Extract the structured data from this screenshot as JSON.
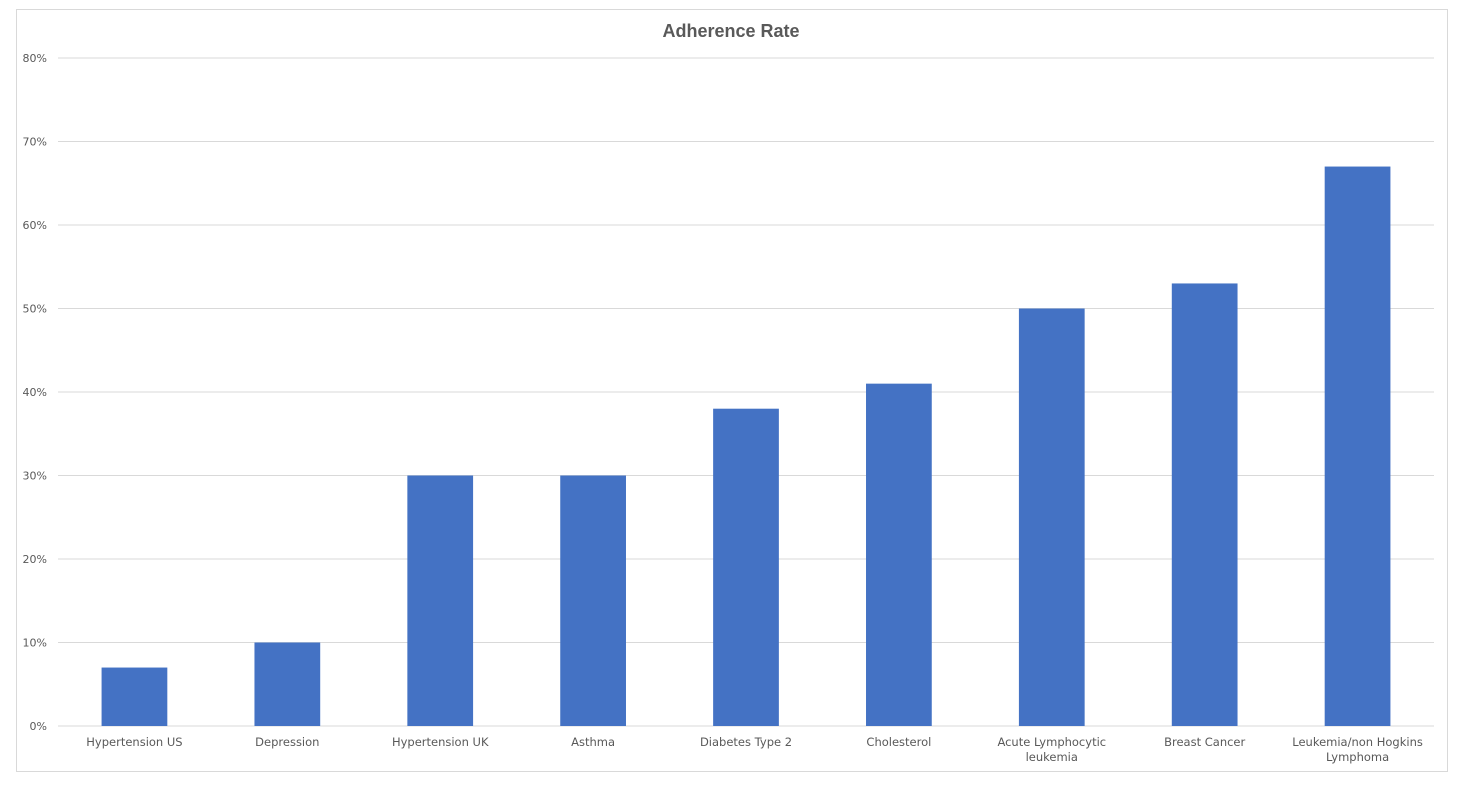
{
  "chart_data": {
    "type": "bar",
    "title": "Adherence Rate",
    "xlabel": "",
    "ylabel": "",
    "categories": [
      [
        "Hypertension US"
      ],
      [
        "Depression"
      ],
      [
        "Hypertension UK"
      ],
      [
        "Asthma"
      ],
      [
        "Diabetes Type 2"
      ],
      [
        "Cholesterol"
      ],
      [
        "Acute Lymphocytic",
        "leukemia"
      ],
      [
        "Breast Cancer"
      ],
      [
        "Leukemia/non Hogkins",
        "Lymphoma"
      ]
    ],
    "values": [
      0.07,
      0.1,
      0.3,
      0.3,
      0.38,
      0.41,
      0.5,
      0.53,
      0.67
    ],
    "ylim": [
      0,
      0.8
    ],
    "yticks": [
      "0%",
      "10%",
      "20%",
      "30%",
      "40%",
      "50%",
      "60%",
      "70%",
      "80%"
    ],
    "grid": true,
    "legend": "none",
    "colors": {
      "bar": "#4472c4",
      "grid": "#d9d9d9",
      "text": "#595959"
    }
  }
}
